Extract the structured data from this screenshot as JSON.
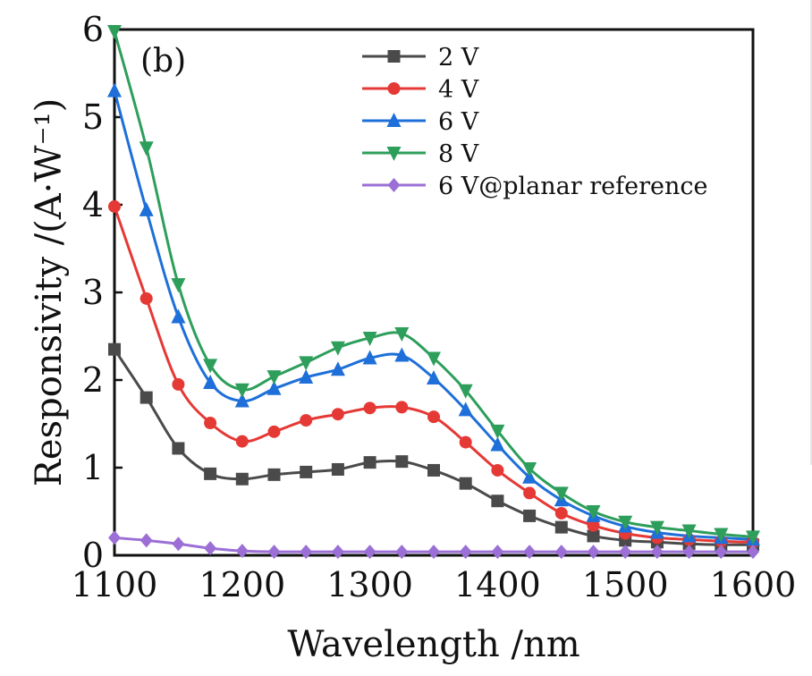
{
  "chart_data": {
    "type": "line",
    "panel_label": "(b)",
    "xlabel": "Wavelength /nm",
    "ylabel": "Responsivity /(A·W⁻¹)",
    "xlim": [
      1100,
      1600
    ],
    "ylim": [
      0,
      6
    ],
    "xticks": [
      "1100",
      "1200",
      "1300",
      "1400",
      "1500",
      "1600"
    ],
    "yticks": [
      "0",
      "1",
      "2",
      "3",
      "4",
      "5",
      "6"
    ],
    "grid": false,
    "legend_position": "top-right",
    "x": [
      1100,
      1125,
      1150,
      1175,
      1200,
      1225,
      1250,
      1275,
      1300,
      1325,
      1350,
      1375,
      1400,
      1425,
      1450,
      1475,
      1500,
      1525,
      1550,
      1575,
      1600
    ],
    "series": [
      {
        "name": "2 V",
        "color": "#4a4a4a",
        "marker": "square",
        "values": [
          2.35,
          1.8,
          1.22,
          0.93,
          0.87,
          0.92,
          0.95,
          0.98,
          1.06,
          1.07,
          0.97,
          0.82,
          0.62,
          0.45,
          0.32,
          0.22,
          0.17,
          0.15,
          0.13,
          0.12,
          0.12
        ]
      },
      {
        "name": "4 V",
        "color": "#e53935",
        "marker": "circle",
        "values": [
          3.98,
          2.93,
          1.95,
          1.51,
          1.3,
          1.41,
          1.54,
          1.61,
          1.68,
          1.69,
          1.58,
          1.29,
          0.97,
          0.71,
          0.48,
          0.34,
          0.25,
          0.2,
          0.18,
          0.16,
          0.15
        ]
      },
      {
        "name": "6 V",
        "color": "#1e6fd9",
        "marker": "triangle-up",
        "values": [
          5.3,
          3.94,
          2.72,
          1.97,
          1.76,
          1.9,
          2.03,
          2.12,
          2.25,
          2.28,
          2.02,
          1.66,
          1.26,
          0.89,
          0.63,
          0.45,
          0.33,
          0.26,
          0.22,
          0.2,
          0.18
        ]
      },
      {
        "name": "8 V",
        "color": "#2e9e5b",
        "marker": "triangle-down",
        "values": [
          5.98,
          4.65,
          3.09,
          2.17,
          1.89,
          2.04,
          2.2,
          2.37,
          2.48,
          2.53,
          2.25,
          1.88,
          1.42,
          0.99,
          0.71,
          0.5,
          0.38,
          0.32,
          0.28,
          0.24,
          0.21
        ]
      },
      {
        "name": "6 V@planar reference",
        "color": "#9b6fd6",
        "marker": "diamond",
        "values": [
          0.2,
          0.17,
          0.13,
          0.08,
          0.05,
          0.04,
          0.04,
          0.04,
          0.04,
          0.04,
          0.04,
          0.04,
          0.04,
          0.04,
          0.04,
          0.04,
          0.04,
          0.04,
          0.04,
          0.04,
          0.04
        ]
      }
    ]
  }
}
